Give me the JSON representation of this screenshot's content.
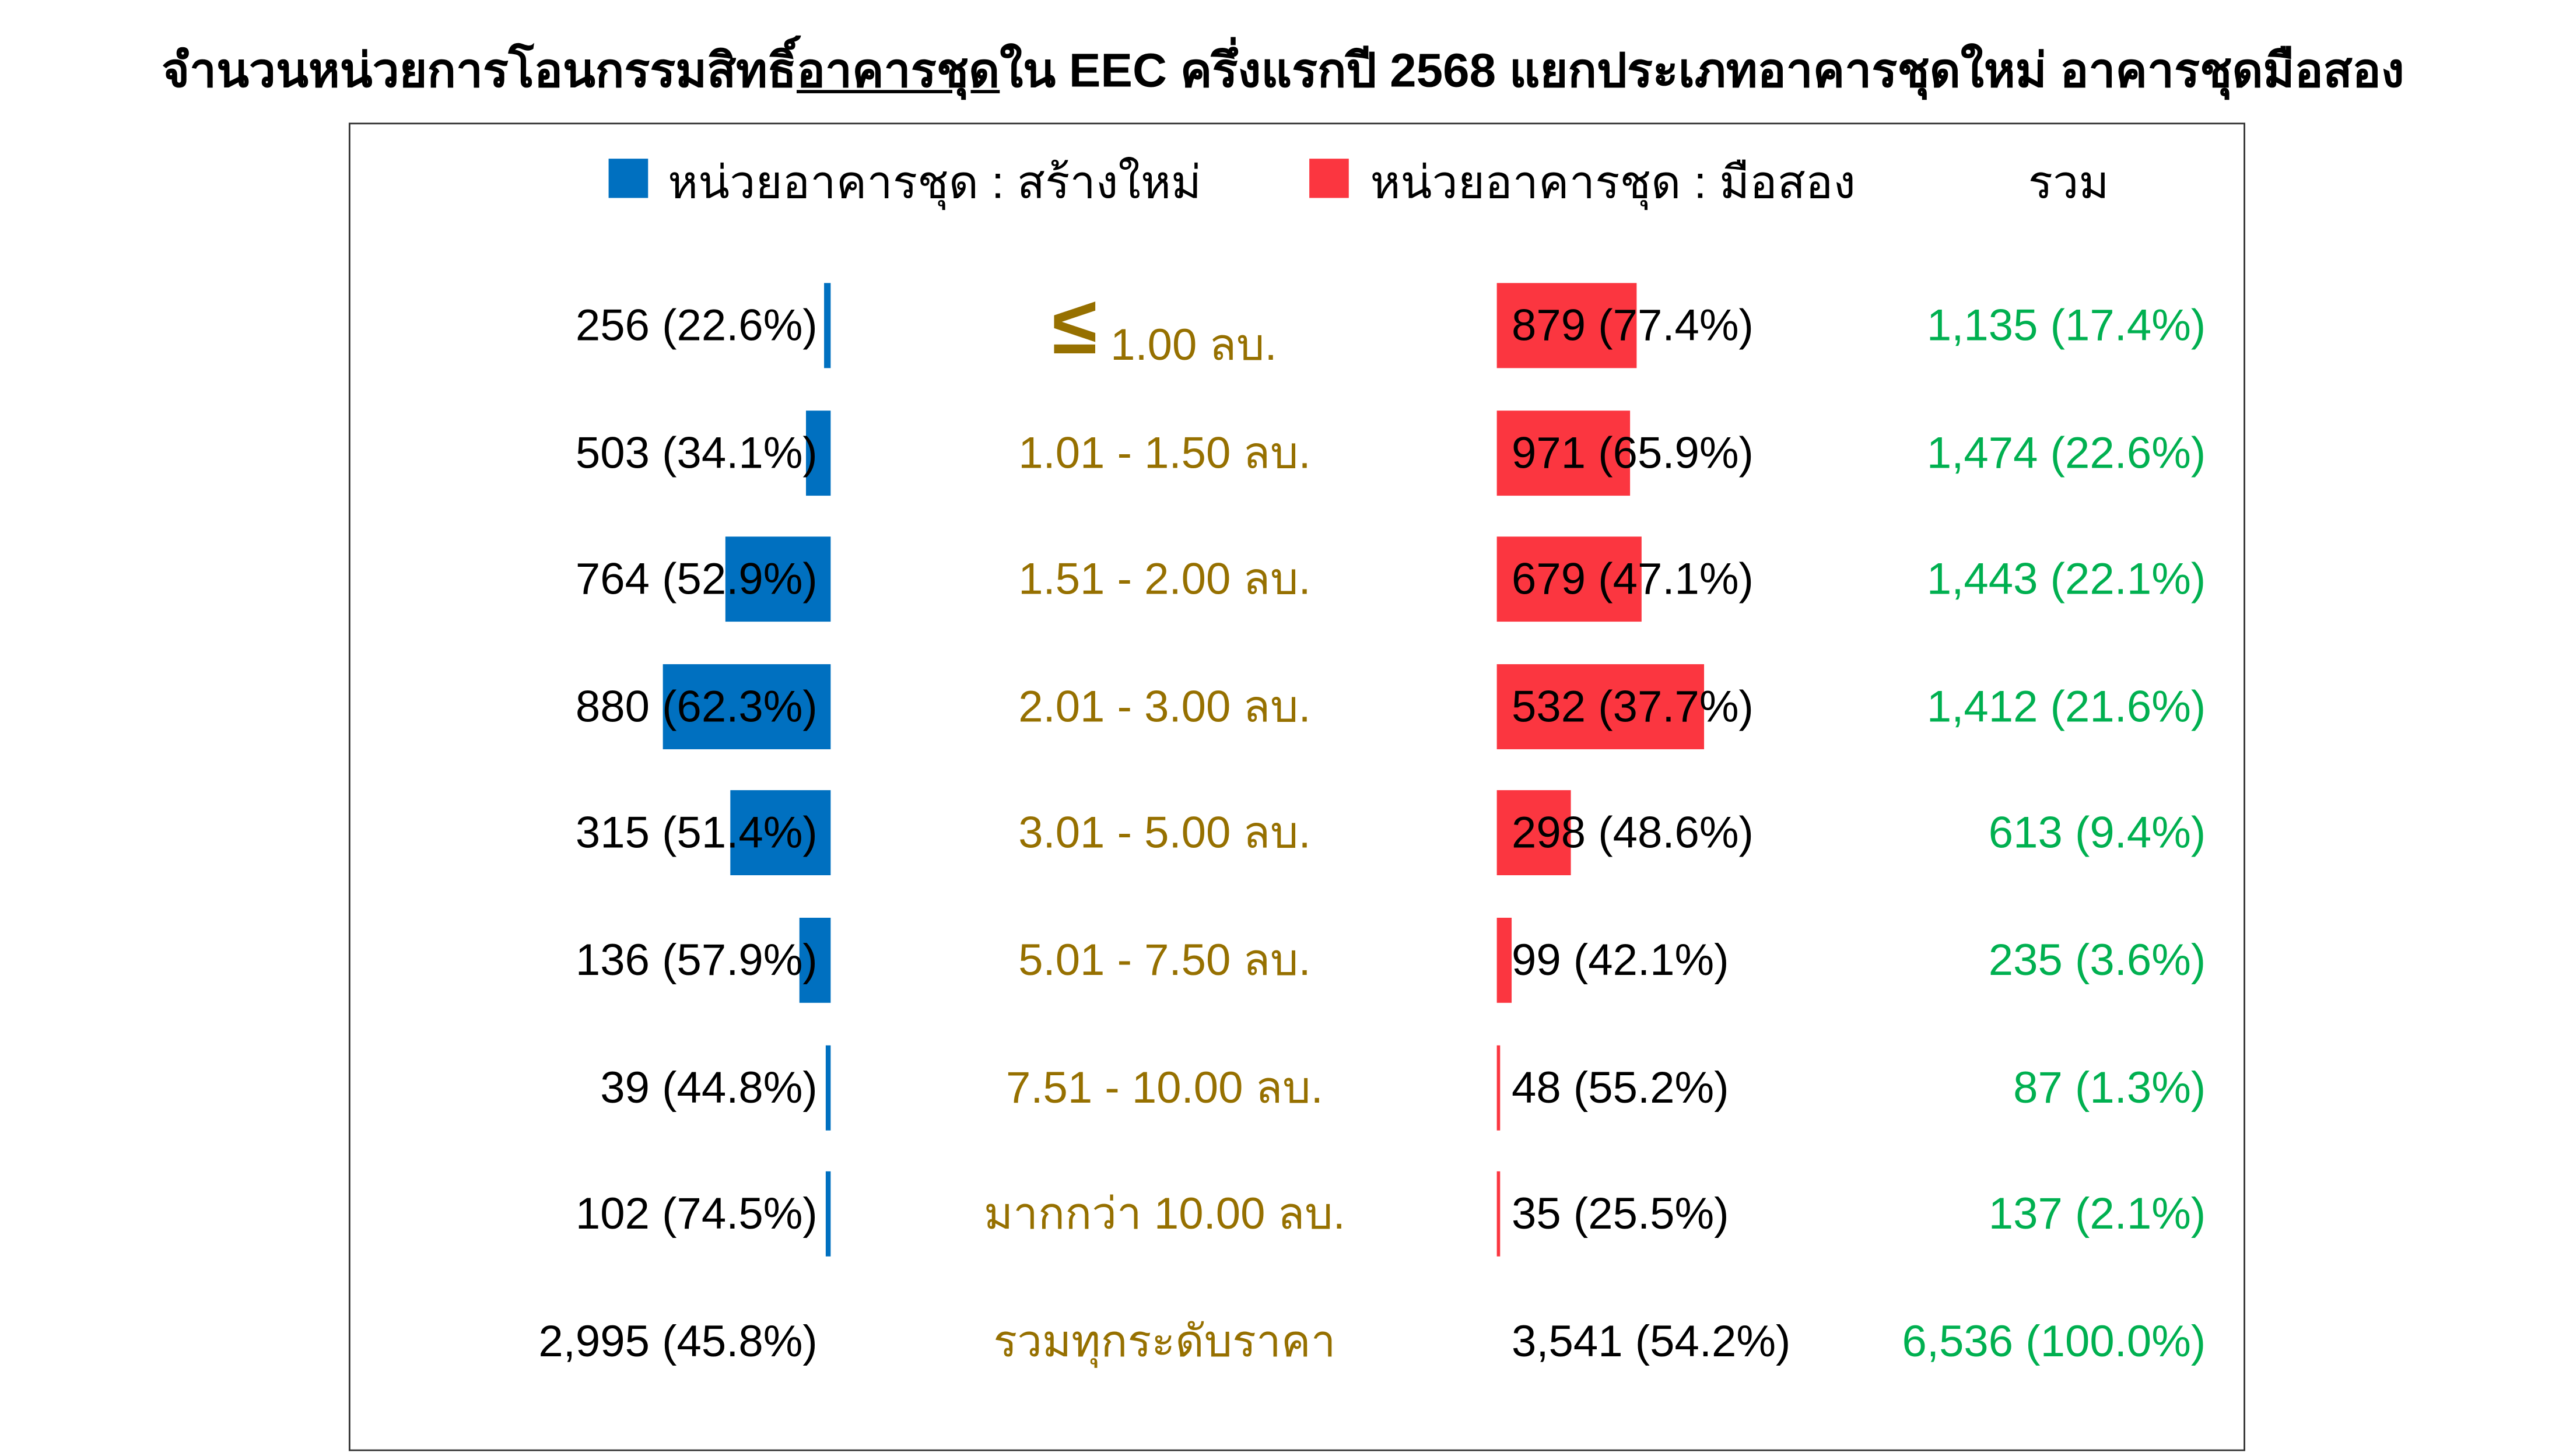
{
  "title": {
    "pre": "จำนวนหน่วยการโอนกรรมสิทธิ์",
    "underlined": "อาคารชุด",
    "post": "ใน EEC ครึ่งแรกปี 2568 แยกประเภทอาคารชุดใหม่ อาคารชุดมือสอง"
  },
  "colors": {
    "new": "#0070c0",
    "used": "#fb3640",
    "price_label": "#967000",
    "total": "#00b050"
  },
  "chart_data": {
    "type": "bar",
    "orientation": "horizontal-diverging",
    "legend": [
      "หน่วยอาคารชุด : สร้างใหม่",
      "หน่วยอาคารชุด : มือสอง",
      "รวม"
    ],
    "legend_placement": "top",
    "categories": [
      "≤ 1.00 ลบ.",
      "1.01 - 1.50 ลบ.",
      "1.51 - 2.00 ลบ.",
      "2.01 - 3.00 ลบ.",
      "3.01 - 5.00 ลบ.",
      "5.01 - 7.50 ลบ.",
      "7.51 - 10.00 ลบ.",
      "มากกว่า 10.00 ลบ.",
      "รวมทุกระดับราคา"
    ],
    "series": [
      {
        "name": "หน่วยอาคารชุด : สร้างใหม่",
        "values": [
          256,
          503,
          764,
          880,
          315,
          136,
          39,
          102,
          2995
        ],
        "labels": [
          "256 (22.6%)",
          "503 (34.1%)",
          "764 (52.9%)",
          "880 (62.3%)",
          "315 (51.4%)",
          "136 (57.9%)",
          "39 (44.8%)",
          "102 (74.5%)",
          "2,995 (45.8%)"
        ]
      },
      {
        "name": "หน่วยอาคารชุด : มือสอง",
        "values": [
          879,
          971,
          679,
          532,
          298,
          99,
          48,
          35,
          3541
        ],
        "labels": [
          "879 (77.4%)",
          "971 (65.9%)",
          "679 (47.1%)",
          "532 (37.7%)",
          "298 (48.6%)",
          "99 (42.1%)",
          "48 (55.2%)",
          "35 (25.5%)",
          "3,541 (54.2%)"
        ]
      },
      {
        "name": "รวม",
        "values": [
          1135,
          1474,
          1443,
          1412,
          613,
          235,
          87,
          137,
          6536
        ],
        "labels": [
          "1,135 (17.4%)",
          "1,474 (22.6%)",
          "1,443 (22.1%)",
          "1,412 (21.6%)",
          "613 (9.4%)",
          "235 (3.6%)",
          "87 (1.3%)",
          "137 (2.1%)",
          "6,536 (100.0%)"
        ]
      }
    ]
  }
}
